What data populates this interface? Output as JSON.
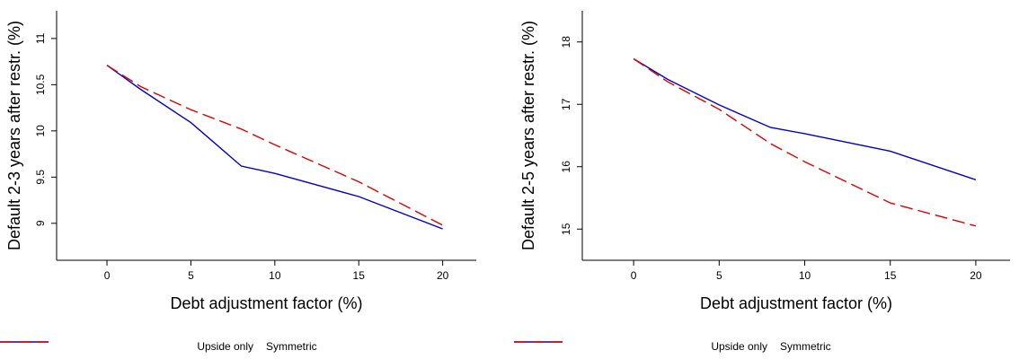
{
  "chart_data": [
    {
      "type": "line",
      "xlabel": "Debt adjustment factor (%)",
      "ylabel": "Default 2-3 years after restr. (%)",
      "xlim": [
        -3,
        22
      ],
      "ylim": [
        8.6,
        11.3
      ],
      "xticks": [
        "0",
        "5",
        "10",
        "15",
        "20"
      ],
      "yticks": [
        "9",
        "9.5",
        "10",
        "10.5",
        "11"
      ],
      "grid": false,
      "legend_position": "bottom",
      "series": [
        {
          "name": "Upside only",
          "color": "#0000cc",
          "dash": "solid",
          "x": [
            0,
            2,
            5,
            8,
            10,
            15,
            20
          ],
          "y": [
            10.71,
            10.45,
            10.09,
            9.62,
            9.54,
            9.29,
            8.94
          ]
        },
        {
          "name": "Symmetric",
          "color": "#dd0000",
          "dash": "dashed",
          "x": [
            0,
            2,
            5,
            8,
            10,
            15,
            20
          ],
          "y": [
            10.71,
            10.48,
            10.23,
            10.02,
            9.85,
            9.45,
            8.98
          ]
        }
      ]
    },
    {
      "type": "line",
      "xlabel": "Debt adjustment factor (%)",
      "ylabel": "Default 2-5 years after restr. (%)",
      "xlim": [
        -3,
        22
      ],
      "ylim": [
        14.5,
        18.5
      ],
      "xticks": [
        "0",
        "5",
        "10",
        "15",
        "20"
      ],
      "yticks": [
        "15",
        "16",
        "17",
        "18"
      ],
      "grid": false,
      "legend_position": "bottom",
      "series": [
        {
          "name": "Upside only",
          "color": "#0000cc",
          "dash": "solid",
          "x": [
            0,
            2,
            5,
            8,
            10,
            15,
            20
          ],
          "y": [
            17.73,
            17.4,
            16.99,
            16.63,
            16.53,
            16.25,
            15.79
          ]
        },
        {
          "name": "Symmetric",
          "color": "#dd0000",
          "dash": "dashed",
          "x": [
            0,
            2,
            5,
            8,
            10,
            15,
            20
          ],
          "y": [
            17.73,
            17.36,
            16.92,
            16.37,
            16.08,
            15.42,
            15.05
          ]
        }
      ]
    }
  ]
}
